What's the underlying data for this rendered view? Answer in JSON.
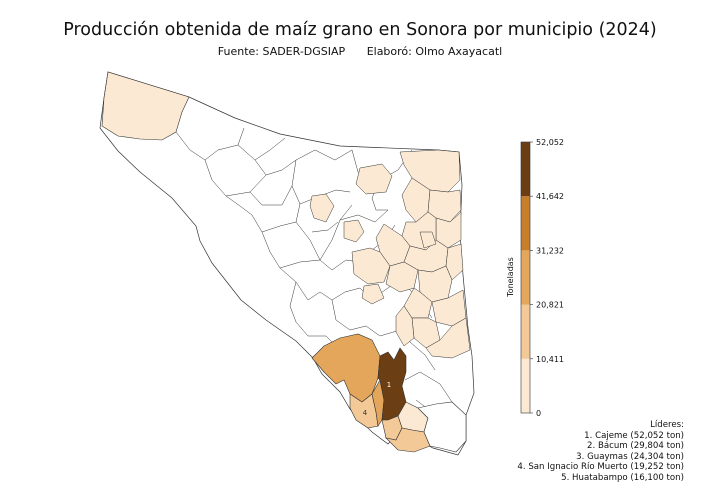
{
  "title": "Producción obtenida de maíz grano en Sonora por municipio (2024)",
  "subtitle": {
    "source": "Fuente: SADER-DGSIAP",
    "author": "Elaboró: Olmo Axayacatl"
  },
  "colorbar": {
    "label": "Toneladas",
    "ticks": [
      "0",
      "10,411",
      "20,821",
      "31,232",
      "41,642",
      "52,052"
    ],
    "colors": [
      "#fbe9d3",
      "#f3c998",
      "#e3a65a",
      "#c97f2a",
      "#6b3f13"
    ]
  },
  "leaders": {
    "heading": "Líderes:",
    "items": [
      "1. Cajeme (52,052 ton)",
      "2. Bácum (29,804 ton)",
      "3. Guaymas (24,304 ton)",
      "4. San Ignacio Río Muerto (19,252 ton)",
      "5. Huatabampo (16,100 ton)"
    ]
  },
  "map_labels": [
    "1",
    "4"
  ],
  "colors": {
    "outline": "#333333",
    "empty": "#ffffff"
  }
}
